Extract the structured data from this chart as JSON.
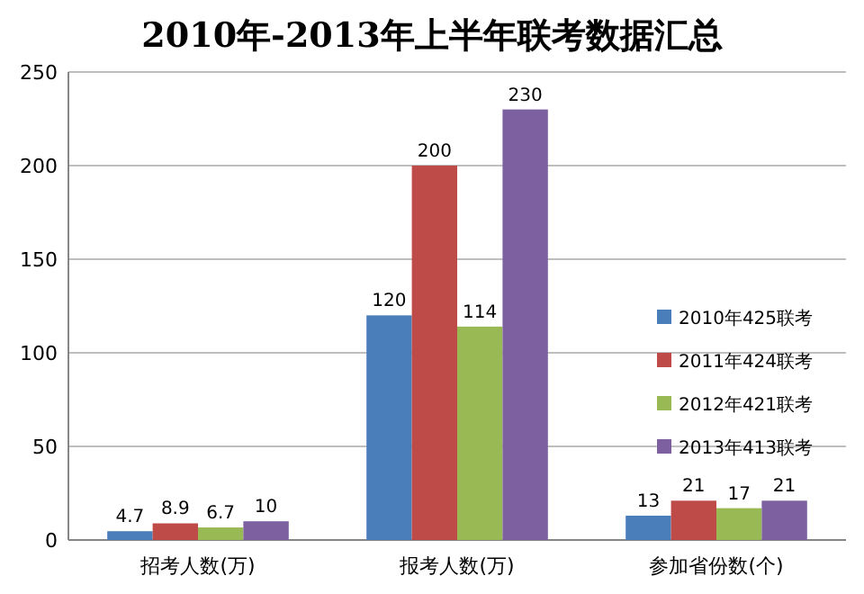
{
  "chart_data": {
    "type": "bar",
    "title": "2010年-2013年上半年联考数据汇总",
    "categories": [
      "招考人数(万)",
      "报考人数(万)",
      "参加省份数(个)"
    ],
    "series": [
      {
        "name": "2010年425联考",
        "color": "#4a7ebb",
        "values": [
          4.7,
          120,
          13
        ]
      },
      {
        "name": "2011年424联考",
        "color": "#be4b48",
        "values": [
          8.9,
          200,
          21
        ]
      },
      {
        "name": "2012年421联考",
        "color": "#98b954",
        "values": [
          6.7,
          114,
          17
        ]
      },
      {
        "name": "2013年413联考",
        "color": "#7d60a0",
        "values": [
          10,
          230,
          21
        ]
      }
    ],
    "ylim": [
      0,
      250
    ],
    "yticks": [
      0,
      50,
      100,
      150,
      200,
      250
    ],
    "grid": "y",
    "legend": "right",
    "data_labels": true
  }
}
